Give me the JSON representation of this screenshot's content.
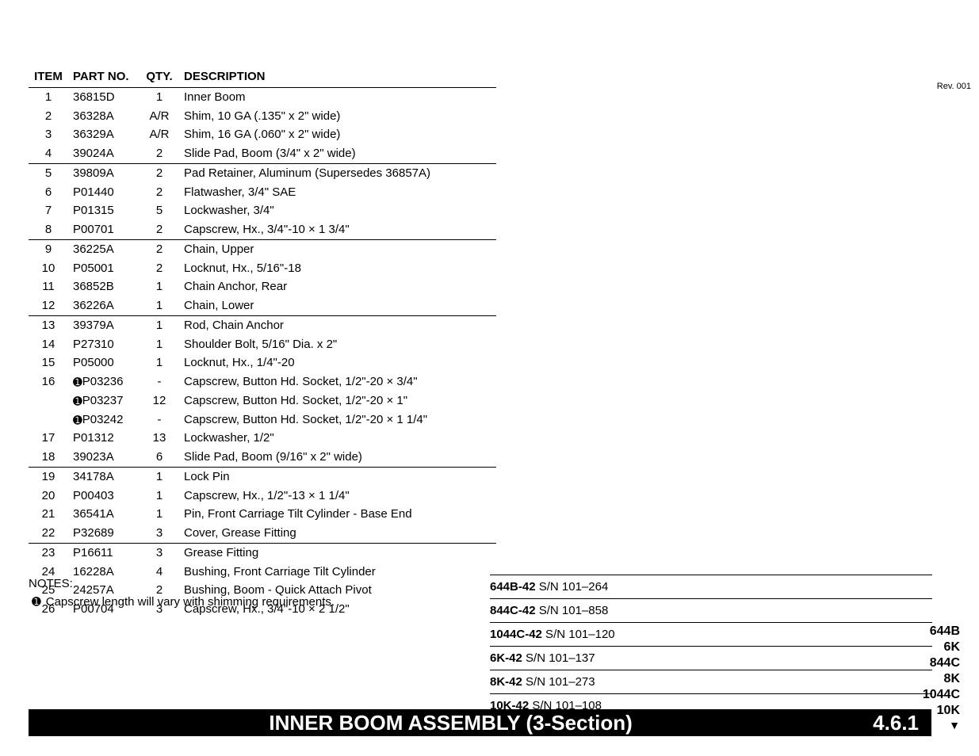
{
  "rev_label": "Rev. 001",
  "columns": {
    "item": "ITEM",
    "partno": "PART NO.",
    "qty": "QTY.",
    "desc": "DESCRIPTION"
  },
  "rows": [
    {
      "item": "1",
      "part": "36815D",
      "qty": "1",
      "desc": "Inner Boom",
      "bullet": false,
      "border": false
    },
    {
      "item": "2",
      "part": "36328A",
      "qty": "A/R",
      "desc": "Shim, 10 GA (.135\" x 2\" wide)",
      "bullet": false,
      "border": false
    },
    {
      "item": "3",
      "part": "36329A",
      "qty": "A/R",
      "desc": "Shim, 16 GA (.060\" x 2\" wide)",
      "bullet": false,
      "border": false
    },
    {
      "item": "4",
      "part": "39024A",
      "qty": "2",
      "desc": "Slide Pad, Boom (3/4\" x 2\" wide)",
      "bullet": false,
      "border": false
    },
    {
      "item": "5",
      "part": "39809A",
      "qty": "2",
      "desc": "Pad Retainer, Aluminum  (Supersedes 36857A)",
      "bullet": false,
      "border": true
    },
    {
      "item": "6",
      "part": "P01440",
      "qty": "2",
      "desc": "Flatwasher, 3/4\" SAE",
      "bullet": false,
      "border": false
    },
    {
      "item": "7",
      "part": "P01315",
      "qty": "5",
      "desc": "Lockwasher, 3/4\"",
      "bullet": false,
      "border": false
    },
    {
      "item": "8",
      "part": "P00701",
      "qty": "2",
      "desc": "Capscrew, Hx., 3/4\"-10 × 1 3/4\"",
      "bullet": false,
      "border": false
    },
    {
      "item": "9",
      "part": "36225A",
      "qty": "2",
      "desc": "Chain, Upper",
      "bullet": false,
      "border": true
    },
    {
      "item": "10",
      "part": "P05001",
      "qty": "2",
      "desc": "Locknut, Hx., 5/16\"-18",
      "bullet": false,
      "border": false
    },
    {
      "item": "11",
      "part": "36852B",
      "qty": "1",
      "desc": "Chain Anchor, Rear",
      "bullet": false,
      "border": false
    },
    {
      "item": "12",
      "part": "36226A",
      "qty": "1",
      "desc": "Chain, Lower",
      "bullet": false,
      "border": false
    },
    {
      "item": "13",
      "part": "39379A",
      "qty": "1",
      "desc": "Rod, Chain Anchor",
      "bullet": false,
      "border": true
    },
    {
      "item": "14",
      "part": "P27310",
      "qty": "1",
      "desc": "Shoulder Bolt, 5/16\" Dia. x 2\"",
      "bullet": false,
      "border": false
    },
    {
      "item": "15",
      "part": "P05000",
      "qty": "1",
      "desc": "Locknut, Hx., 1/4\"-20",
      "bullet": false,
      "border": false
    },
    {
      "item": "16",
      "part": "P03236",
      "qty": "-",
      "desc": "Capscrew, Button Hd. Socket, 1/2\"-20 × 3/4\"",
      "bullet": true,
      "border": false
    },
    {
      "item": "",
      "part": "P03237",
      "qty": "12",
      "desc": "Capscrew, Button Hd. Socket, 1/2\"-20 × 1\"",
      "bullet": true,
      "border": false
    },
    {
      "item": "",
      "part": "P03242",
      "qty": "-",
      "desc": "Capscrew, Button Hd. Socket, 1/2\"-20 × 1 1/4\"",
      "bullet": true,
      "border": false
    },
    {
      "item": "17",
      "part": "P01312",
      "qty": "13",
      "desc": "Lockwasher, 1/2\"",
      "bullet": false,
      "border": false
    },
    {
      "item": "18",
      "part": "39023A",
      "qty": "6",
      "desc": "Slide Pad, Boom (9/16\" x 2\" wide)",
      "bullet": false,
      "border": false
    },
    {
      "item": "19",
      "part": "34178A",
      "qty": "1",
      "desc": "Lock Pin",
      "bullet": false,
      "border": true
    },
    {
      "item": "20",
      "part": "P00403",
      "qty": "1",
      "desc": "Capscrew, Hx., 1/2\"-13 × 1 1/4\"",
      "bullet": false,
      "border": false
    },
    {
      "item": "21",
      "part": "36541A",
      "qty": "1",
      "desc": "Pin, Front Carriage Tilt Cylinder - Base End",
      "bullet": false,
      "border": false
    },
    {
      "item": "22",
      "part": "P32689",
      "qty": "3",
      "desc": "Cover, Grease Fitting",
      "bullet": false,
      "border": false
    },
    {
      "item": "23",
      "part": "P16611",
      "qty": "3",
      "desc": "Grease Fitting",
      "bullet": false,
      "border": true
    },
    {
      "item": "24",
      "part": "16228A",
      "qty": "4",
      "desc": "Bushing, Front Carriage Tilt Cylinder",
      "bullet": false,
      "border": false
    },
    {
      "item": "25",
      "part": "24257A",
      "qty": "2",
      "desc": "Bushing, Boom - Quick Attach Pivot",
      "bullet": false,
      "border": false
    },
    {
      "item": "26",
      "part": "P00704",
      "qty": "3",
      "desc": "Capscrew, Hx., 3/4\"-10 × 2 1/2\"",
      "bullet": false,
      "border": false
    }
  ],
  "notes_title": "NOTES:",
  "note_text": "Capscrew length will vary with shimming requirements.",
  "serials": [
    {
      "model": "644B-42",
      "range": " S/N 101–264"
    },
    {
      "model": "844C-42",
      "range": " S/N 101–858"
    },
    {
      "model": "1044C-42",
      "range": " S/N 101–120"
    },
    {
      "model": "6K-42",
      "range": " S/N 101–137"
    },
    {
      "model": "8K-42",
      "range": " S/N 101–273"
    },
    {
      "model": "10K-42",
      "range": " S/N 101–108"
    }
  ],
  "right_index": [
    "644B",
    "6K",
    "844C",
    "8K",
    "1044C",
    "10K"
  ],
  "triangle": "▼",
  "footer_title": "INNER BOOM ASSEMBLY (3-Section)",
  "footer_number": "4.6.1"
}
